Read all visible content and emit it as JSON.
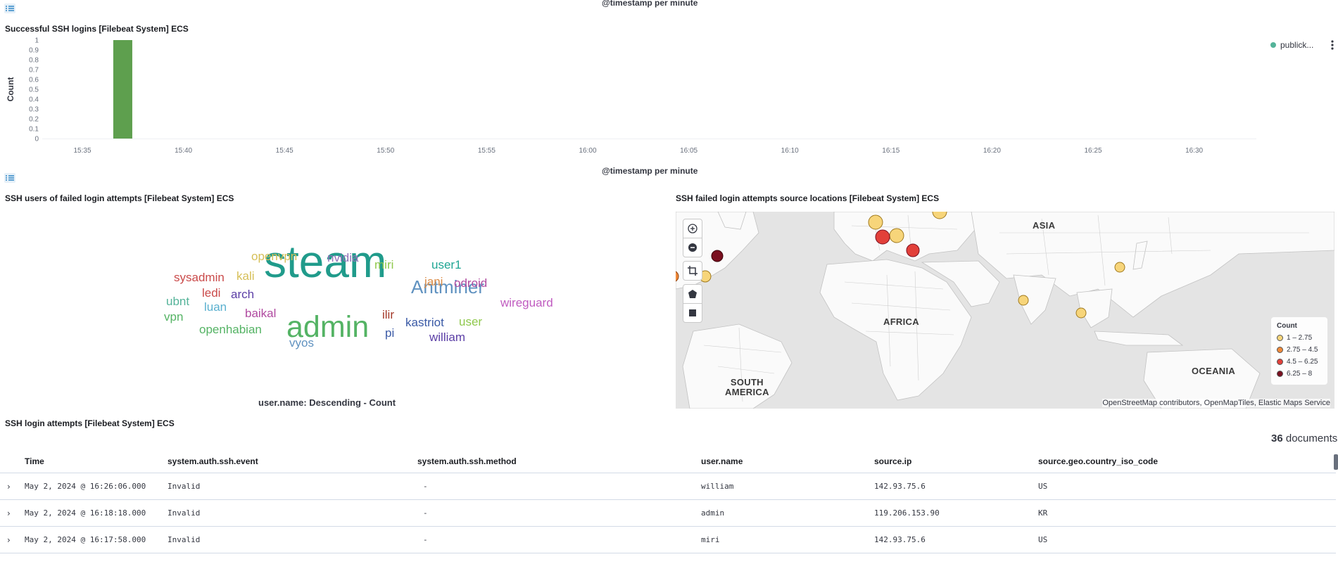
{
  "top_chart": {
    "x_axis_title_above": "@timestamp per minute",
    "panel_title": "Successful SSH logins [Filebeat System] ECS",
    "legend_item": "publick...",
    "x_axis_title": "@timestamp per minute"
  },
  "chart_data": {
    "type": "bar",
    "title": "Successful SSH logins [Filebeat System] ECS",
    "xlabel": "@timestamp per minute",
    "ylabel": "Count",
    "ylim": [
      0,
      1
    ],
    "y_ticks": [
      "1",
      "0.9",
      "0.8",
      "0.7",
      "0.6",
      "0.5",
      "0.4",
      "0.3",
      "0.2",
      "0.1",
      "0"
    ],
    "x_ticks": [
      "15:35",
      "15:40",
      "15:45",
      "15:50",
      "15:55",
      "16:00",
      "16:05",
      "16:10",
      "16:15",
      "16:20",
      "16:25",
      "16:30"
    ],
    "series": [
      {
        "name": "publick...",
        "color": "#54b399",
        "points": [
          {
            "x": "15:37",
            "y": 1
          }
        ]
      }
    ],
    "bar_color": "#6092c0",
    "legend_position": "top-right"
  },
  "tag_cloud": {
    "title": "SSH users of failed login attempts [Filebeat System] ECS",
    "caption": "user.name: Descending - Count",
    "words": [
      {
        "text": "steam",
        "color": "#209b8b"
      },
      {
        "text": "admin",
        "color": "#54b364"
      },
      {
        "text": "Antminer",
        "color": "#6092c0"
      },
      {
        "text": "openvpn",
        "color": "#d6bf57"
      },
      {
        "text": "nvidia",
        "color": "#9170b8"
      },
      {
        "text": "miri",
        "color": "#8fc84c"
      },
      {
        "text": "user1",
        "color": "#1ea593"
      },
      {
        "text": "sysadmin",
        "color": "#ca4a4a"
      },
      {
        "text": "kali",
        "color": "#d6bf57"
      },
      {
        "text": "jani",
        "color": "#da8b45"
      },
      {
        "text": "odroid",
        "color": "#b04aa0"
      },
      {
        "text": "ledi",
        "color": "#ca4a4a"
      },
      {
        "text": "arch",
        "color": "#5b3ea6"
      },
      {
        "text": "ubnt",
        "color": "#54b399"
      },
      {
        "text": "luan",
        "color": "#5ab0cf"
      },
      {
        "text": "wireguard",
        "color": "#c05bc0"
      },
      {
        "text": "vpn",
        "color": "#54b364"
      },
      {
        "text": "baikal",
        "color": "#b04aa0"
      },
      {
        "text": "ilir",
        "color": "#a53a2a"
      },
      {
        "text": "user",
        "color": "#8fc84c"
      },
      {
        "text": "kastriot",
        "color": "#3a5aa6"
      },
      {
        "text": "openhabian",
        "color": "#54b364"
      },
      {
        "text": "pi",
        "color": "#3a5aa6"
      },
      {
        "text": "william",
        "color": "#5b3ea6"
      },
      {
        "text": "vyos",
        "color": "#6092c0"
      }
    ]
  },
  "map": {
    "title": "SSH failed login attempts source locations [Filebeat System] ECS",
    "continents": {
      "asia": "ASIA",
      "africa": "AFRICA",
      "south_america_1": "SOUTH",
      "south_america_2": "AMERICA",
      "oceania": "OCEANIA"
    },
    "legend_title": "Count",
    "legend": [
      {
        "label": "1 – 2.75",
        "color": "#f7d57a"
      },
      {
        "label": "2.75 – 4.5",
        "color": "#f08a3a"
      },
      {
        "label": "4.5 – 6.25",
        "color": "#e2403a"
      },
      {
        "label": "6.25 – 8",
        "color": "#7a1020"
      }
    ],
    "attribution": "OpenStreetMap contributors, OpenMapTiles, Elastic Maps Service",
    "controls": [
      "plus-icon",
      "minus-icon",
      "crop-icon",
      "polygon-icon",
      "square-icon"
    ]
  },
  "table": {
    "title": "SSH login attempts [Filebeat System] ECS",
    "doc_count": "36",
    "doc_label": "documents",
    "columns": [
      "Time",
      "system.auth.ssh.event",
      "system.auth.ssh.method",
      "user.name",
      "source.ip",
      "source.geo.country_iso_code"
    ],
    "rows": [
      [
        "May 2, 2024 @ 16:26:06.000",
        "Invalid",
        "-",
        "william",
        "142.93.75.6",
        "US"
      ],
      [
        "May 2, 2024 @ 16:18:18.000",
        "Invalid",
        "-",
        "admin",
        "119.206.153.90",
        "KR"
      ],
      [
        "May 2, 2024 @ 16:17:58.000",
        "Invalid",
        "-",
        "miri",
        "142.93.75.6",
        "US"
      ]
    ]
  }
}
